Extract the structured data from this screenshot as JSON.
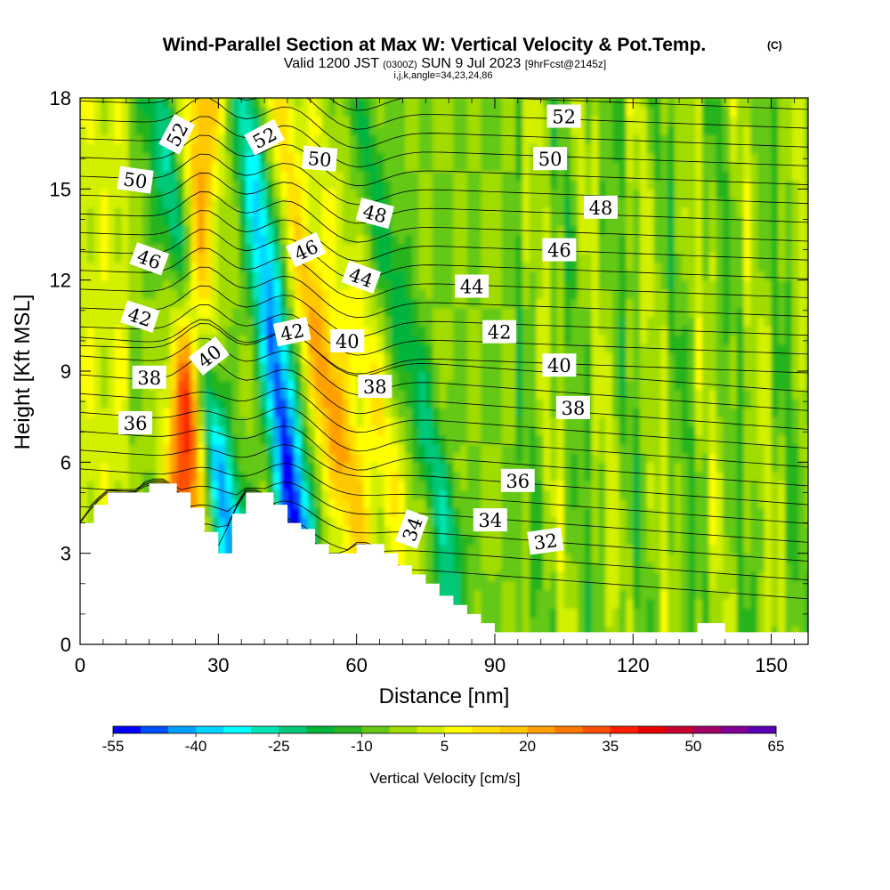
{
  "title": "Wind-Parallel Section at Max W: Vertical Velocity & Pot.Temp.",
  "copyright_mark": "(C)",
  "valid_line": {
    "prefix": "Valid 1200 JST",
    "utc": "(0300Z)",
    "date": "SUN 9 Jul 2023",
    "forecast": "[9hrFcst@2145z]"
  },
  "indices_line": "i,j,k,angle=34,23,24,86",
  "chart_data": {
    "type": "heatmap",
    "xlabel": "Distance [nm]",
    "ylabel": "Height [Kft MSL]",
    "xlim": [
      0,
      158
    ],
    "ylim": [
      0,
      18
    ],
    "xticks": [
      0,
      30,
      60,
      90,
      120,
      150
    ],
    "yticks": [
      0,
      3,
      6,
      9,
      12,
      15,
      18
    ],
    "colorbar": {
      "label": "Vertical Velocity [cm/s]",
      "min": -55,
      "max": 65,
      "step": 5,
      "tick_labels": [
        "-55",
        "-40",
        "-25",
        "-10",
        "5",
        "20",
        "35",
        "50",
        "65"
      ],
      "colors": [
        "#0000ff",
        "#0050ff",
        "#00a0ff",
        "#00d4ff",
        "#00ffff",
        "#00e6b4",
        "#00c878",
        "#00b43c",
        "#28b41e",
        "#64c814",
        "#a0dc00",
        "#d2f000",
        "#ffff00",
        "#ffe100",
        "#ffc800",
        "#ffa000",
        "#ff7800",
        "#ff5000",
        "#ff1e00",
        "#e60000",
        "#c80032",
        "#a00064",
        "#800096",
        "#5a00b4"
      ]
    },
    "terrain_profile": {
      "distance_nm": [
        0,
        3,
        6,
        9,
        12,
        15,
        18,
        21,
        24,
        27,
        30,
        33,
        36,
        39,
        42,
        45,
        48,
        51,
        54,
        57,
        60,
        63,
        66,
        69,
        72,
        75,
        78,
        81,
        84,
        87,
        90,
        93,
        96,
        99,
        105,
        120,
        132,
        134,
        137,
        140,
        150,
        158
      ],
      "height_kft": [
        4.0,
        4.6,
        5.0,
        5.0,
        5.0,
        5.3,
        5.3,
        5.0,
        4.5,
        3.7,
        3.0,
        4.3,
        5.0,
        5.0,
        4.6,
        4.0,
        3.8,
        3.3,
        3.0,
        3.0,
        3.3,
        3.3,
        3.0,
        2.6,
        2.3,
        2.0,
        1.6,
        1.3,
        1.0,
        0.7,
        0.4,
        0.4,
        0.4,
        0.4,
        0.4,
        0.4,
        0.4,
        0.7,
        0.7,
        0.4,
        0.4,
        0.4
      ]
    },
    "w_features": [
      {
        "kind": "updraft",
        "center_nm": 22,
        "top_center_nm": 27,
        "peak_cms": 45,
        "note": "orange-red band"
      },
      {
        "kind": "downdraft",
        "center_nm": 47,
        "top_center_nm": 36,
        "peak_cms": -55,
        "note": "blue band"
      },
      {
        "kind": "updraft",
        "center_nm": 60,
        "top_center_nm": 42,
        "peak_cms": 30,
        "note": "orange band"
      },
      {
        "kind": "downdraft",
        "center_nm": 33,
        "top_center_nm": 16,
        "peak_cms": -40,
        "note": "cyan band"
      },
      {
        "kind": "downdraft",
        "center_nm": 80,
        "top_center_nm": 60,
        "peak_cms": -20,
        "note": "green band"
      },
      {
        "kind": "updraft",
        "center_nm": 70,
        "top_center_nm": 50,
        "peak_cms": 15,
        "note": "yellow-orange band"
      }
    ],
    "theta_contour_labels": [
      {
        "text": "52",
        "x_nm": 21,
        "y_kft": 16.8,
        "angle": -62
      },
      {
        "text": "52",
        "x_nm": 40,
        "y_kft": 16.7,
        "angle": -28
      },
      {
        "text": "52",
        "x_nm": 105,
        "y_kft": 17.4,
        "angle": 0
      },
      {
        "text": "50",
        "x_nm": 12,
        "y_kft": 15.3,
        "angle": 8
      },
      {
        "text": "50",
        "x_nm": 52,
        "y_kft": 16.0,
        "angle": 5
      },
      {
        "text": "50",
        "x_nm": 102,
        "y_kft": 16.0,
        "angle": 0
      },
      {
        "text": "48",
        "x_nm": 64,
        "y_kft": 14.2,
        "angle": 15
      },
      {
        "text": "48",
        "x_nm": 113,
        "y_kft": 14.4,
        "angle": 0
      },
      {
        "text": "46",
        "x_nm": 15,
        "y_kft": 12.7,
        "angle": 20
      },
      {
        "text": "46",
        "x_nm": 49,
        "y_kft": 13.0,
        "angle": -25
      },
      {
        "text": "46",
        "x_nm": 104,
        "y_kft": 13.0,
        "angle": 0
      },
      {
        "text": "44",
        "x_nm": 61,
        "y_kft": 12.1,
        "angle": 20
      },
      {
        "text": "44",
        "x_nm": 85,
        "y_kft": 11.8,
        "angle": 0
      },
      {
        "text": "42",
        "x_nm": 13,
        "y_kft": 10.8,
        "angle": 18
      },
      {
        "text": "42",
        "x_nm": 46,
        "y_kft": 10.3,
        "angle": -12
      },
      {
        "text": "42",
        "x_nm": 91,
        "y_kft": 10.3,
        "angle": 0
      },
      {
        "text": "40",
        "x_nm": 28,
        "y_kft": 9.5,
        "angle": -38
      },
      {
        "text": "40",
        "x_nm": 58,
        "y_kft": 10.0,
        "angle": 0
      },
      {
        "text": "40",
        "x_nm": 104,
        "y_kft": 9.2,
        "angle": 0
      },
      {
        "text": "38",
        "x_nm": 15,
        "y_kft": 8.8,
        "angle": 0
      },
      {
        "text": "38",
        "x_nm": 64,
        "y_kft": 8.5,
        "angle": 0
      },
      {
        "text": "38",
        "x_nm": 107,
        "y_kft": 7.8,
        "angle": 0
      },
      {
        "text": "36",
        "x_nm": 12,
        "y_kft": 7.3,
        "angle": 0
      },
      {
        "text": "36",
        "x_nm": 95,
        "y_kft": 5.4,
        "angle": 0
      },
      {
        "text": "34",
        "x_nm": 72,
        "y_kft": 3.8,
        "angle": -70
      },
      {
        "text": "34",
        "x_nm": 89,
        "y_kft": 4.1,
        "angle": 0
      },
      {
        "text": "32",
        "x_nm": 101,
        "y_kft": 3.4,
        "angle": -8
      }
    ]
  }
}
